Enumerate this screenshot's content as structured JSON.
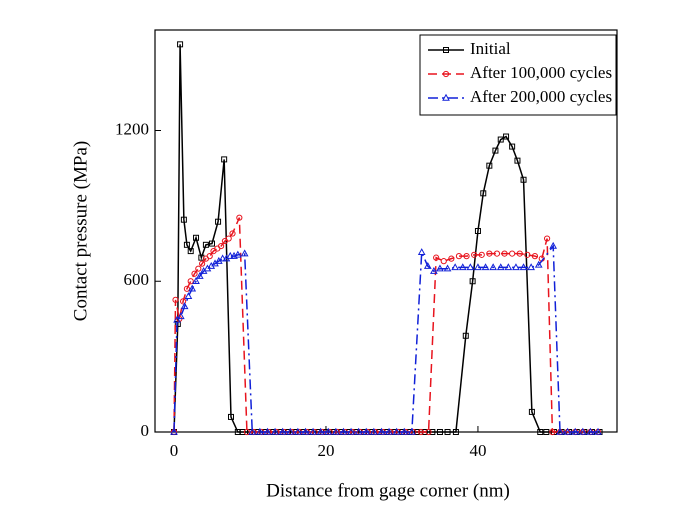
{
  "chart_data": {
    "type": "line",
    "xlabel": "Distance from gage corner (nm)",
    "ylabel": "Contact pressure (MPa)",
    "xlim": [
      -2.5,
      58.3
    ],
    "xticks": [
      0,
      20,
      40
    ],
    "ylim": [
      0,
      1600
    ],
    "yticks": [
      0,
      600,
      1200
    ],
    "legend": "upper right",
    "series": [
      {
        "name": "Initial",
        "color": "#000000",
        "marker": "square",
        "dash": "solid",
        "x": [
          0,
          0.5,
          0.8,
          1.3,
          1.7,
          2.2,
          2.9,
          3.6,
          4.2,
          5,
          5.8,
          6.6,
          7.5,
          8.4,
          9,
          10,
          11,
          12,
          13,
          14,
          15,
          16,
          17,
          18,
          19,
          20,
          21,
          22,
          23,
          24,
          25,
          26,
          27,
          28,
          29,
          30,
          31,
          32,
          33,
          34,
          35,
          36,
          37.1,
          38.4,
          39.3,
          40,
          40.7,
          41.5,
          42.3,
          43,
          43.7,
          44.5,
          45.2,
          46,
          47.1,
          48.2,
          49,
          50,
          51,
          52,
          53,
          54,
          55,
          56
        ],
        "values": [
          0,
          430,
          1543,
          845,
          745,
          720,
          773,
          694,
          745,
          750,
          837,
          1085,
          60,
          0,
          0,
          0,
          0,
          0,
          0,
          0,
          0,
          0,
          0,
          0,
          0,
          0,
          0,
          0,
          0,
          0,
          0,
          0,
          0,
          0,
          0,
          0,
          0,
          0,
          0,
          0,
          0,
          0,
          0,
          383,
          600,
          800,
          950,
          1060,
          1120,
          1164,
          1176,
          1136,
          1080,
          1004,
          80,
          0,
          0,
          0,
          0,
          0,
          0,
          0,
          0,
          0
        ]
      },
      {
        "name": "After 100,000 cycles",
        "color": "#e8141e",
        "marker": "circle",
        "dash": "dashed",
        "x": [
          0,
          0.2,
          0.7,
          1.2,
          1.7,
          2.2,
          2.7,
          3.2,
          3.7,
          4.2,
          4.7,
          5.2,
          5.7,
          6.2,
          6.7,
          7.2,
          7.7,
          8.6,
          9.6,
          10.5,
          11.5,
          12.5,
          13.5,
          14.5,
          15.5,
          16.5,
          17.5,
          18.5,
          19.5,
          20.5,
          21.5,
          22.5,
          23.5,
          24.5,
          25.5,
          26.5,
          27.5,
          28.5,
          29.5,
          30.5,
          31.5,
          32.5,
          33.5,
          34.5,
          35.5,
          36.5,
          37.5,
          38.5,
          39.5,
          40.5,
          41.5,
          42.5,
          43.5,
          44.5,
          45.5,
          46.5,
          47.5,
          48.4,
          49.1,
          49.8,
          50.8,
          51.8,
          52.8,
          53.8,
          54.8,
          55.8
        ],
        "values": [
          0,
          526,
          450,
          520,
          570,
          600,
          630,
          650,
          670,
          690,
          700,
          720,
          730,
          740,
          760,
          770,
          790,
          853,
          0,
          0,
          0,
          0,
          0,
          0,
          0,
          0,
          0,
          0,
          0,
          0,
          0,
          0,
          0,
          0,
          0,
          0,
          0,
          0,
          0,
          0,
          0,
          0,
          0,
          694,
          680,
          690,
          700,
          700,
          705,
          705,
          710,
          710,
          710,
          710,
          710,
          705,
          700,
          690,
          770,
          0,
          0,
          0,
          0,
          0,
          0,
          0
        ]
      },
      {
        "name": "After 200,000 cycles",
        "color": "#1020d8",
        "marker": "triangle",
        "dash": "dashdot",
        "x": [
          0,
          0.4,
          0.9,
          1.4,
          1.9,
          2.4,
          2.9,
          3.4,
          3.9,
          4.4,
          4.9,
          5.4,
          5.9,
          6.4,
          6.9,
          7.4,
          7.9,
          8.4,
          9.3,
          10.3,
          11.3,
          12.3,
          13.3,
          14.3,
          15.3,
          16.3,
          17.3,
          18.3,
          19.3,
          20.3,
          21.3,
          22.3,
          23.3,
          24.3,
          25.3,
          26.3,
          27.3,
          28.3,
          29.3,
          30.3,
          31.3,
          32.6,
          33.4,
          34.2,
          35,
          36,
          37,
          38,
          39,
          40,
          41,
          42,
          43,
          44,
          45,
          46,
          47,
          48,
          49.9,
          50.8,
          51.8,
          52.8,
          53.8,
          54.8,
          55.8
        ],
        "values": [
          0,
          446,
          460,
          500,
          540,
          570,
          600,
          620,
          640,
          650,
          660,
          670,
          680,
          690,
          690,
          700,
          700,
          705,
          710,
          0,
          0,
          0,
          0,
          0,
          0,
          0,
          0,
          0,
          0,
          0,
          0,
          0,
          0,
          0,
          0,
          0,
          0,
          0,
          0,
          0,
          0,
          715,
          660,
          640,
          650,
          650,
          655,
          655,
          655,
          655,
          655,
          655,
          655,
          655,
          655,
          655,
          655,
          665,
          740,
          0,
          0,
          0,
          0,
          0,
          0
        ]
      }
    ]
  }
}
